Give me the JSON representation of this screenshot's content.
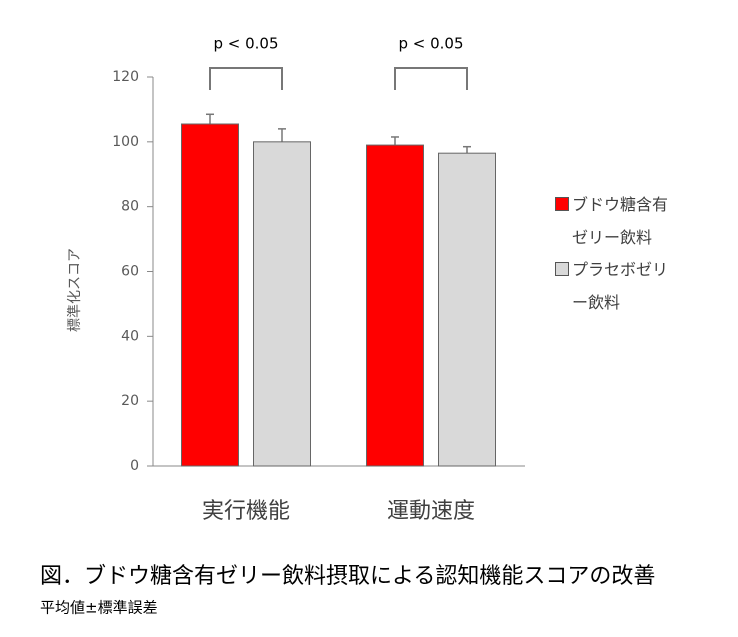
{
  "chart_data": {
    "type": "bar",
    "y_label": "標準化スコア",
    "categories": [
      "実行機能",
      "運動速度"
    ],
    "series": [
      {
        "name": "ブドウ糖含有ゼリー飲料",
        "color": "#ff0000",
        "values": [
          105.5,
          99
        ],
        "errors": [
          3,
          2.5
        ]
      },
      {
        "name": "プラセボゼリー飲料",
        "color": "#d9d9d9",
        "values": [
          100,
          96.5
        ],
        "errors": [
          4,
          2
        ]
      }
    ],
    "ylim": [
      0,
      120
    ],
    "yticks": [
      0,
      20,
      40,
      60,
      80,
      100,
      120
    ],
    "grid": false,
    "annotations": [
      "p < 0.05",
      "p < 0.05"
    ],
    "caption": "図．ブドウ糖含有ゼリー飲料摂取による認知機能スコアの改善",
    "note": "平均値±標準誤差"
  }
}
